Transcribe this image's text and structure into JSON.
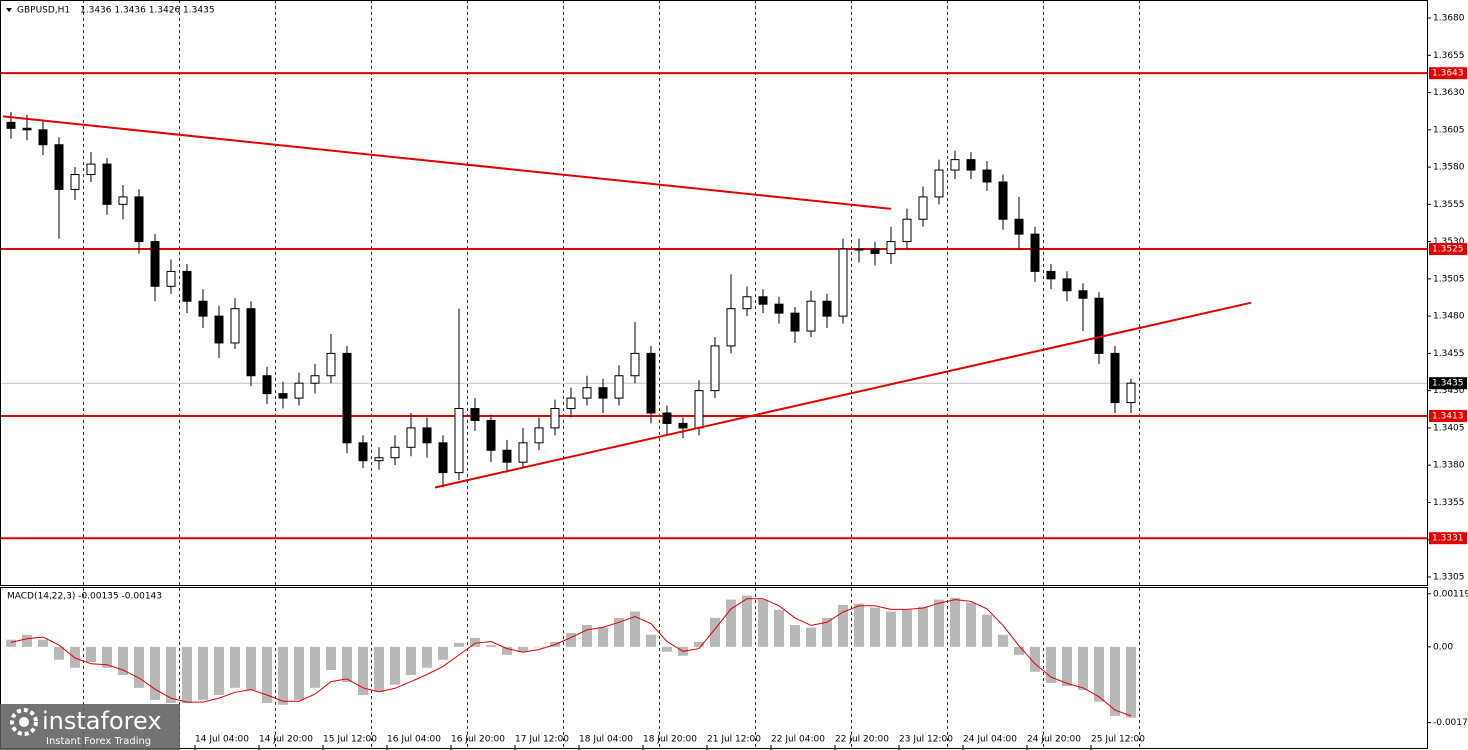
{
  "chart_data": [
    {
      "type": "candlestick",
      "title": "GBPUSD,H1",
      "subtitle": "1.3436 1.3436 1.3426 1.3435",
      "up_color": "#ffffff",
      "down_color": "#000000",
      "x": [
        2,
        6,
        10,
        14,
        18,
        22,
        26,
        30,
        34,
        38,
        42,
        46,
        50,
        54,
        58,
        62,
        66,
        70,
        74,
        78,
        82,
        86,
        90,
        94,
        98,
        102,
        106,
        110,
        114,
        118,
        122,
        126,
        130,
        134,
        138,
        142,
        146,
        150,
        154,
        158,
        162,
        166,
        170,
        174,
        178,
        182,
        186,
        190,
        194,
        198,
        202,
        206,
        210,
        214,
        218,
        222,
        226,
        230,
        234,
        238,
        242,
        246,
        250,
        254,
        258,
        262,
        266,
        270,
        274,
        278,
        282
      ],
      "open": [
        1.361,
        1.3606,
        1.3605,
        1.3595,
        1.3565,
        1.3575,
        1.3582,
        1.3555,
        1.356,
        1.353,
        1.35,
        1.351,
        1.349,
        1.348,
        1.3462,
        1.3485,
        1.344,
        1.3428,
        1.3425,
        1.3435,
        1.344,
        1.3455,
        1.3395,
        1.3383,
        1.3385,
        1.3392,
        1.3405,
        1.3395,
        1.3375,
        1.3418,
        1.341,
        1.339,
        1.3382,
        1.3395,
        1.3405,
        1.3418,
        1.3425,
        1.3432,
        1.3425,
        1.344,
        1.3455,
        1.3415,
        1.3408,
        1.3405,
        1.343,
        1.346,
        1.3485,
        1.3493,
        1.3488,
        1.3482,
        1.347,
        1.349,
        1.348,
        1.3525,
        1.3525,
        1.3522,
        1.353,
        1.3545,
        1.356,
        1.3578,
        1.3585,
        1.3578,
        1.357,
        1.3545,
        1.3535,
        1.351,
        1.3505,
        1.3497,
        1.3492,
        1.3455,
        1.3422
      ],
      "high": [
        1.3617,
        1.3615,
        1.3612,
        1.36,
        1.358,
        1.359,
        1.3586,
        1.3568,
        1.3565,
        1.3535,
        1.3518,
        1.3515,
        1.3498,
        1.3487,
        1.3492,
        1.349,
        1.3446,
        1.3436,
        1.3442,
        1.3448,
        1.3468,
        1.346,
        1.34,
        1.3392,
        1.34,
        1.3415,
        1.3412,
        1.34,
        1.3485,
        1.3425,
        1.3414,
        1.3397,
        1.3405,
        1.3412,
        1.3424,
        1.3432,
        1.344,
        1.3438,
        1.3447,
        1.3476,
        1.346,
        1.342,
        1.3412,
        1.3437,
        1.3466,
        1.3508,
        1.35,
        1.3498,
        1.3493,
        1.3486,
        1.3497,
        1.3495,
        1.3532,
        1.3532,
        1.353,
        1.354,
        1.3552,
        1.3567,
        1.3585,
        1.3591,
        1.359,
        1.3584,
        1.3575,
        1.356,
        1.354,
        1.3515,
        1.351,
        1.3502,
        1.3496,
        1.346,
        1.3438
      ],
      "low": [
        1.3599,
        1.3598,
        1.3588,
        1.3532,
        1.3558,
        1.357,
        1.3548,
        1.3545,
        1.3522,
        1.349,
        1.3495,
        1.3482,
        1.3472,
        1.3452,
        1.3458,
        1.3433,
        1.3421,
        1.3418,
        1.342,
        1.3428,
        1.3435,
        1.3388,
        1.3378,
        1.3377,
        1.338,
        1.3386,
        1.3385,
        1.3365,
        1.337,
        1.3403,
        1.3382,
        1.3375,
        1.3378,
        1.339,
        1.34,
        1.3412,
        1.342,
        1.3415,
        1.342,
        1.3435,
        1.3408,
        1.34,
        1.3398,
        1.34,
        1.3425,
        1.3455,
        1.348,
        1.3482,
        1.3475,
        1.3462,
        1.3466,
        1.3472,
        1.3475,
        1.3516,
        1.3514,
        1.3515,
        1.3525,
        1.354,
        1.3555,
        1.3572,
        1.3572,
        1.3564,
        1.3538,
        1.3525,
        1.3503,
        1.3498,
        1.349,
        1.347,
        1.3448,
        1.3415,
        1.3415
      ],
      "close": [
        1.3606,
        1.3605,
        1.3595,
        1.3565,
        1.3575,
        1.3582,
        1.3555,
        1.356,
        1.353,
        1.35,
        1.351,
        1.349,
        1.348,
        1.3462,
        1.3485,
        1.344,
        1.3428,
        1.3425,
        1.3435,
        1.344,
        1.3455,
        1.3395,
        1.3383,
        1.3385,
        1.3392,
        1.3405,
        1.3395,
        1.3375,
        1.3418,
        1.341,
        1.339,
        1.3382,
        1.3395,
        1.3405,
        1.3418,
        1.3425,
        1.3432,
        1.3425,
        1.344,
        1.3455,
        1.3415,
        1.3408,
        1.3405,
        1.343,
        1.346,
        1.3485,
        1.3493,
        1.3488,
        1.3482,
        1.347,
        1.349,
        1.348,
        1.3525,
        1.3525,
        1.3522,
        1.353,
        1.3545,
        1.356,
        1.3578,
        1.3585,
        1.3578,
        1.357,
        1.3545,
        1.3535,
        1.351,
        1.3505,
        1.3497,
        1.3492,
        1.3455,
        1.3422,
        1.3435
      ],
      "xlim": [
        -0.75,
        356
      ],
      "ylim": [
        1.32996,
        1.36921
      ],
      "yticks": [
        {
          "value": 1.368,
          "label": "1.3680"
        },
        {
          "value": 1.3655,
          "label": "1.3655"
        },
        {
          "value": 1.363,
          "label": "1.3630"
        },
        {
          "value": 1.3605,
          "label": "1.3605"
        },
        {
          "value": 1.358,
          "label": "1.3580"
        },
        {
          "value": 1.3555,
          "label": "1.3555"
        },
        {
          "value": 1.353,
          "label": "1.3530"
        },
        {
          "value": 1.3505,
          "label": "1.3505"
        },
        {
          "value": 1.348,
          "label": "1.3480"
        },
        {
          "value": 1.3455,
          "label": "1.3455"
        },
        {
          "value": 1.343,
          "label": "1.3430"
        },
        {
          "value": 1.3405,
          "label": "1.3405"
        },
        {
          "value": 1.338,
          "label": "1.3380"
        },
        {
          "value": 1.3355,
          "label": "1.3355"
        },
        {
          "value": 1.333,
          "label": "1.3330"
        },
        {
          "value": 1.3305,
          "label": "1.3305"
        }
      ],
      "xticks": [
        {
          "value": 48,
          "label": "14 Jul 04:00"
        },
        {
          "value": 64,
          "label": "14 Jul 20:00"
        },
        {
          "value": 80,
          "label": "15 Jul 12:00"
        },
        {
          "value": 96,
          "label": "16 Jul 04:00"
        },
        {
          "value": 112,
          "label": "16 Jul 20:00"
        },
        {
          "value": 128,
          "label": "17 Jul 12:00"
        },
        {
          "value": 144,
          "label": "18 Jul 04:00"
        },
        {
          "value": 160,
          "label": "18 Jul 20:00"
        },
        {
          "value": 176,
          "label": "21 Jul 12:00"
        },
        {
          "value": 192,
          "label": "22 Jul 04:00"
        },
        {
          "value": 208,
          "label": "22 Jul 20:00"
        },
        {
          "value": 224,
          "label": "23 Jul 12:00"
        },
        {
          "value": 240,
          "label": "24 Jul 04:00"
        },
        {
          "value": 256,
          "label": "24 Jul 20:00"
        },
        {
          "value": 272,
          "label": "25 Jul 12:00"
        }
      ],
      "xgrid": [
        20,
        44,
        68,
        92,
        116,
        140,
        164,
        188,
        212,
        236,
        260,
        284
      ],
      "hlines": [
        1.3643,
        1.3525,
        1.3413,
        1.3331
      ],
      "hline_color": "#e00000",
      "last_price": 1.3435,
      "trendlines": [
        {
          "x": [
            0,
            222
          ],
          "y": [
            1.3614,
            1.3552
          ]
        },
        {
          "x": [
            108,
            312
          ],
          "y": [
            1.3365,
            1.3489
          ]
        }
      ]
    },
    {
      "type": "macd",
      "title": "MACD(14,22,3) -0.00135 -0.00143",
      "x": [
        2,
        6,
        10,
        14,
        18,
        22,
        26,
        30,
        34,
        38,
        42,
        46,
        50,
        54,
        58,
        62,
        66,
        70,
        74,
        78,
        82,
        86,
        90,
        94,
        98,
        102,
        106,
        110,
        114,
        118,
        122,
        126,
        130,
        134,
        138,
        142,
        146,
        150,
        154,
        158,
        162,
        166,
        170,
        174,
        178,
        182,
        186,
        190,
        194,
        198,
        202,
        206,
        210,
        214,
        218,
        222,
        226,
        230,
        234,
        238,
        242,
        246,
        250,
        254,
        258,
        262,
        266,
        270,
        274,
        278,
        282
      ],
      "series": [
        {
          "name": "MACD",
          "color": "#b8b8b8",
          "values": [
            0.00016,
            0.00027,
            0.00016,
            -0.00029,
            -0.00047,
            -0.00034,
            -0.00047,
            -0.00063,
            -0.00092,
            -0.00119,
            -0.00126,
            -0.00126,
            -0.00119,
            -0.00108,
            -0.00092,
            -0.00097,
            -0.00126,
            -0.0013,
            -0.00119,
            -0.00092,
            -0.00052,
            -0.00079,
            -0.00108,
            -0.00101,
            -0.00085,
            -0.00063,
            -0.00047,
            -0.00029,
            9e-05,
            0.0002,
            4e-05,
            -0.00018,
            -0.00011,
            0,
            0.00011,
            0.00031,
            0.00049,
            0.00043,
            0.00065,
            0.00079,
            0.00027,
            -0.00011,
            -0.0002,
            0.00011,
            0.00065,
            0.00106,
            0.00115,
            0.00106,
            0.00083,
            0.00049,
            0.00043,
            0.00065,
            0.00094,
            0.00097,
            0.00088,
            0.00079,
            0.00083,
            0.0009,
            0.00106,
            0.0011,
            0.00099,
            0.00072,
            0.00027,
            -0.00018,
            -0.00056,
            -0.00081,
            -0.00088,
            -0.00097,
            -0.00123,
            -0.00155,
            -0.00159
          ]
        },
        {
          "name": "Signal",
          "color": "#e00000",
          "values": [
            0.0001,
            0.00018,
            0.00022,
            4e-05,
            -0.00025,
            -0.00038,
            -0.0004,
            -0.00052,
            -0.0007,
            -0.00095,
            -0.00115,
            -0.00124,
            -0.00124,
            -0.00115,
            -0.00102,
            -0.00096,
            -0.00108,
            -0.00122,
            -0.00122,
            -0.00106,
            -0.00078,
            -0.00072,
            -0.00092,
            -0.00101,
            -0.00093,
            -0.00078,
            -0.00062,
            -0.00044,
            -0.00018,
            8e-05,
            0.00012,
            -4e-05,
            -0.00012,
            -6e-05,
            5e-05,
            0.00021,
            0.00038,
            0.00044,
            0.00055,
            0.00068,
            0.00052,
            0.00012,
            -0.0001,
            -4e-05,
            0.0004,
            0.00085,
            0.00108,
            0.00108,
            0.00092,
            0.00065,
            0.00048,
            0.00055,
            0.00078,
            0.00092,
            0.00092,
            0.00084,
            0.00084,
            0.00087,
            0.00098,
            0.00106,
            0.00102,
            0.00085,
            0.00048,
            2e-05,
            -0.00038,
            -0.00068,
            -0.00082,
            -0.00092,
            -0.00112,
            -0.00142,
            -0.00155
          ]
        }
      ],
      "ylim": [
        -0.00227,
        0.00132
      ],
      "yticks": [
        0.00119,
        {
          "value": 0,
          "label": "0.00"
        },
        -0.0017
      ]
    }
  ],
  "branding": {
    "name": "instaforex",
    "tagline": "Instant Forex Trading"
  }
}
